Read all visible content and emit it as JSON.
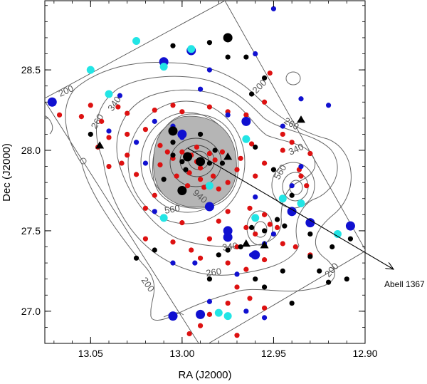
{
  "chart_data": {
    "type": "scatter",
    "xlabel": "RA (J2000)",
    "ylabel": "Dec (J2000)",
    "xlim": [
      13.075,
      12.9
    ],
    "ylim": [
      26.8,
      28.93
    ],
    "x_direction": "decreasing",
    "xticks": [
      13.05,
      13.0,
      12.95,
      12.9
    ],
    "xtick_labels": [
      "13.05",
      "13.00",
      "12.95",
      "12.90"
    ],
    "yticks": [
      27.0,
      27.5,
      28.0,
      28.5
    ],
    "ytick_labels": [
      "27.0",
      "27.5",
      "28.0",
      "28.5"
    ],
    "grid": false,
    "colors": {
      "red": "#dd1111",
      "blue": "#1010d0",
      "black": "#000000",
      "cyan": "#22e5e5",
      "contour": "#666666",
      "core": "#b5b5b5"
    },
    "contour_labels": [
      "200",
      "200",
      "200",
      "200",
      "260",
      "260",
      "260",
      "340",
      "340",
      "340",
      "560",
      "560",
      "940"
    ],
    "arrow_label": "Abell 1367",
    "series": [
      {
        "marker": "circle",
        "color": "red",
        "points": [
          [
            13.067,
            28.22
          ],
          [
            13.055,
            28.21
          ],
          [
            13.05,
            28.28
          ],
          [
            13.044,
            28.18
          ],
          [
            13.04,
            28.08
          ],
          [
            13.046,
            28.02
          ],
          [
            13.035,
            28.27
          ],
          [
            13.03,
            28.23
          ],
          [
            13.03,
            28.1
          ],
          [
            13.02,
            28.13
          ],
          [
            13.015,
            28.25
          ],
          [
            13.005,
            28.28
          ],
          [
            13.0,
            28.24
          ],
          [
            13.033,
            27.92
          ],
          [
            13.025,
            27.85
          ],
          [
            13.04,
            27.9
          ],
          [
            13.03,
            27.97
          ],
          [
            13.012,
            28.03
          ],
          [
            13.008,
            27.99
          ],
          [
            13.012,
            27.91
          ],
          [
            13.005,
            27.95
          ],
          [
            13.0,
            27.99
          ],
          [
            12.995,
            27.97
          ],
          [
            12.992,
            27.93
          ],
          [
            12.99,
            27.89
          ],
          [
            12.996,
            27.86
          ],
          [
            13.003,
            27.84
          ],
          [
            12.985,
            27.98
          ],
          [
            12.982,
            27.94
          ],
          [
            12.983,
            27.84
          ],
          [
            12.978,
            27.99
          ],
          [
            12.992,
            28.02
          ],
          [
            12.99,
            27.82
          ],
          [
            12.997,
            27.78
          ],
          [
            12.988,
            27.77
          ],
          [
            12.98,
            27.76
          ],
          [
            12.975,
            27.8
          ],
          [
            12.97,
            27.88
          ],
          [
            12.968,
            27.95
          ],
          [
            12.962,
            28.04
          ],
          [
            12.96,
            27.84
          ],
          [
            12.955,
            27.92
          ],
          [
            12.945,
            28.0
          ],
          [
            12.94,
            28.05
          ],
          [
            12.93,
            27.98
          ],
          [
            12.955,
            28.3
          ],
          [
            12.965,
            28.22
          ],
          [
            12.985,
            28.27
          ],
          [
            12.975,
            28.24
          ],
          [
            12.952,
            28.48
          ],
          [
            12.945,
            28.1
          ],
          [
            12.963,
            27.64
          ],
          [
            12.955,
            27.6
          ],
          [
            12.952,
            27.54
          ],
          [
            12.948,
            27.52
          ],
          [
            12.96,
            27.48
          ],
          [
            12.975,
            27.62
          ],
          [
            12.98,
            27.56
          ],
          [
            12.965,
            27.52
          ],
          [
            12.97,
            27.4
          ],
          [
            12.985,
            27.45
          ],
          [
            12.995,
            27.38
          ],
          [
            13.0,
            27.55
          ],
          [
            13.005,
            27.43
          ],
          [
            12.99,
            27.33
          ],
          [
            12.975,
            27.3
          ],
          [
            12.965,
            27.26
          ],
          [
            12.963,
            27.08
          ],
          [
            12.955,
            27.02
          ],
          [
            12.97,
            27.15
          ],
          [
            12.985,
            26.98
          ],
          [
            12.97,
            26.85
          ],
          [
            12.975,
            27.05
          ],
          [
            12.945,
            27.42
          ],
          [
            12.938,
            27.4
          ],
          [
            12.93,
            27.35
          ],
          [
            12.955,
            27.32
          ],
          [
            12.99,
            26.91
          ],
          [
            12.996,
            26.86
          ],
          [
            13.02,
            27.45
          ],
          [
            13.015,
            27.72
          ],
          [
            13.02,
            27.64
          ],
          [
            12.935,
            27.84
          ],
          [
            12.932,
            27.78
          ],
          [
            12.936,
            27.88
          ]
        ]
      },
      {
        "marker": "circle",
        "color": "blue",
        "points": [
          [
            13.04,
            28.12
          ],
          [
            13.034,
            28.34
          ],
          [
            13.015,
            28.18
          ],
          [
            13.0,
            28.08
          ],
          [
            12.99,
            28.38
          ],
          [
            12.985,
            28.5
          ],
          [
            12.96,
            28.6
          ],
          [
            12.95,
            28.88
          ],
          [
            12.975,
            28.22
          ],
          [
            12.945,
            28.15
          ],
          [
            12.935,
            28.32
          ],
          [
            12.92,
            28.28
          ],
          [
            12.935,
            27.9
          ],
          [
            12.94,
            27.78
          ],
          [
            12.96,
            27.71
          ],
          [
            12.955,
            27.42
          ],
          [
            12.962,
            27.35
          ],
          [
            12.975,
            27.5
          ],
          [
            12.97,
            27.23
          ],
          [
            12.985,
            27.06
          ],
          [
            12.965,
            27.0
          ],
          [
            12.955,
            26.96
          ],
          [
            13.015,
            27.62
          ],
          [
            13.005,
            27.3
          ],
          [
            12.993,
            27.3
          ],
          [
            12.95,
            27.48
          ],
          [
            13.02,
            27.92
          ],
          [
            13.005,
            28.15
          ],
          [
            13.025,
            28.05
          ]
        ]
      },
      {
        "marker": "circle",
        "color": "blue",
        "size": "large",
        "points": [
          [
            13.071,
            28.3
          ],
          [
            13.01,
            28.55
          ],
          [
            12.995,
            28.62
          ],
          [
            13.0,
            28.1
          ],
          [
            12.965,
            28.18
          ],
          [
            12.985,
            27.65
          ],
          [
            12.975,
            27.5
          ],
          [
            12.975,
            27.46
          ],
          [
            12.94,
            27.62
          ],
          [
            12.93,
            27.55
          ],
          [
            12.908,
            27.53
          ],
          [
            12.96,
            27.35
          ],
          [
            12.99,
            26.98
          ],
          [
            13.005,
            26.97
          ]
        ]
      },
      {
        "marker": "circle",
        "color": "black",
        "points": [
          [
            13.05,
            28.1
          ],
          [
            13.005,
            28.65
          ],
          [
            12.985,
            28.67
          ],
          [
            12.975,
            28.58
          ],
          [
            12.965,
            28.58
          ],
          [
            12.955,
            28.45
          ],
          [
            12.962,
            28.35
          ],
          [
            12.99,
            28.1
          ],
          [
            13.005,
            28.05
          ],
          [
            13.005,
            27.97
          ],
          [
            13.0,
            27.93
          ],
          [
            12.985,
            27.92
          ],
          [
            12.978,
            27.92
          ],
          [
            12.982,
            28.0
          ],
          [
            12.998,
            27.88
          ],
          [
            13.01,
            27.82
          ],
          [
            12.96,
            28.02
          ],
          [
            12.95,
            27.88
          ],
          [
            12.94,
            27.72
          ],
          [
            12.948,
            27.57
          ],
          [
            12.944,
            27.53
          ],
          [
            12.955,
            27.5
          ],
          [
            12.962,
            27.52
          ],
          [
            12.968,
            27.4
          ],
          [
            12.975,
            27.38
          ],
          [
            12.98,
            27.35
          ],
          [
            12.985,
            27.2
          ],
          [
            12.96,
            27.2
          ],
          [
            12.955,
            27.15
          ],
          [
            12.945,
            27.25
          ],
          [
            12.94,
            27.05
          ],
          [
            12.93,
            27.34
          ],
          [
            12.925,
            27.25
          ],
          [
            12.92,
            27.18
          ],
          [
            12.918,
            27.4
          ],
          [
            12.908,
            27.45
          ],
          [
            12.93,
            27.48
          ],
          [
            12.91,
            27.2
          ],
          [
            13.025,
            27.33
          ],
          [
            13.015,
            27.38
          ]
        ]
      },
      {
        "marker": "circle",
        "color": "black",
        "size": "large",
        "points": [
          [
            12.975,
            28.7
          ],
          [
            12.997,
            27.96
          ],
          [
            12.99,
            27.93
          ],
          [
            13.0,
            27.75
          ],
          [
            13.005,
            28.12
          ]
        ]
      },
      {
        "marker": "circle",
        "color": "cyan",
        "points": [
          [
            13.025,
            28.68
          ],
          [
            13.05,
            28.5
          ],
          [
            13.04,
            28.35
          ],
          [
            13.01,
            28.52
          ],
          [
            12.995,
            28.63
          ],
          [
            12.965,
            28.07
          ],
          [
            12.96,
            27.58
          ],
          [
            12.985,
            27.78
          ],
          [
            12.945,
            27.7
          ],
          [
            12.935,
            27.67
          ],
          [
            12.915,
            27.48
          ],
          [
            12.975,
            26.97
          ],
          [
            12.98,
            26.99
          ],
          [
            13.01,
            27.58
          ]
        ]
      },
      {
        "marker": "triangle",
        "color": "black",
        "points": [
          [
            13.045,
            28.03
          ],
          [
            12.935,
            28.19
          ],
          [
            12.975,
            27.96
          ],
          [
            12.955,
            27.41
          ],
          [
            12.965,
            27.42
          ]
        ]
      }
    ]
  }
}
